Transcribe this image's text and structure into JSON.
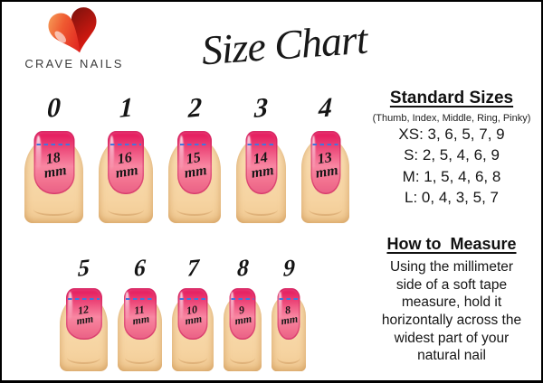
{
  "brand": {
    "name": "CRAVE NAILS"
  },
  "title": "Size Chart",
  "unit": "mm",
  "rows": [
    {
      "name": "sizes-0-4",
      "sizes": [
        {
          "label": "0",
          "width_mm": "18"
        },
        {
          "label": "1",
          "width_mm": "16"
        },
        {
          "label": "2",
          "width_mm": "15"
        },
        {
          "label": "3",
          "width_mm": "14"
        },
        {
          "label": "4",
          "width_mm": "13"
        }
      ]
    },
    {
      "name": "sizes-5-9",
      "sizes": [
        {
          "label": "5",
          "width_mm": "12"
        },
        {
          "label": "6",
          "width_mm": "11"
        },
        {
          "label": "7",
          "width_mm": "10"
        },
        {
          "label": "8",
          "width_mm": "9"
        },
        {
          "label": "9",
          "width_mm": "8"
        }
      ]
    }
  ],
  "standard_sizes": {
    "heading": "Standard Sizes",
    "subheading": "(Thumb, Index, Middle, Ring, Pinky)",
    "lines": [
      "XS: 3, 6, 5, 7, 9",
      "S: 2, 5, 4, 6, 9",
      "M: 1, 5, 4, 6, 8",
      "L: 0, 4, 3, 5, 7"
    ]
  },
  "how_to_measure": {
    "heading": "How to  Measure",
    "body_lines": [
      "Using the millimeter",
      "side of  a soft  tape",
      "measure, hold it",
      "horizontally across the",
      "widest part of your",
      "natural nail"
    ]
  },
  "colors": {
    "nail_pink_top": "#e31158",
    "nail_pink_mid": "#f887a2",
    "nail_pink_bottom": "#e95f86",
    "finger_skin": "#f6d4a2",
    "measure_line_blue": "#3f76e0",
    "heart_orange": "#f7a45c",
    "heart_red": "#e02420",
    "heart_dark_red": "#7a110c",
    "brand_text": "#3a3a3a",
    "text_black": "#111111"
  }
}
